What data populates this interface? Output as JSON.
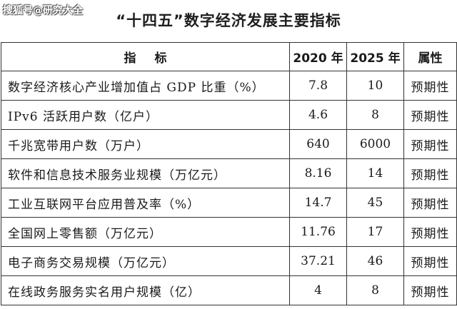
{
  "watermark": "搜狐号@研究大全",
  "title": "“十四五”数字经济发展主要指标",
  "table": {
    "headers": [
      "指标",
      "2020 年",
      "2025 年",
      "属性"
    ],
    "rows": [
      {
        "name": "数字经济核心产业增加值占 GDP 比重（%）",
        "y2020": "7.8",
        "y2025": "10",
        "attr": "预期性"
      },
      {
        "name": "IPv6 活跃用户数（亿户）",
        "y2020": "4.6",
        "y2025": "8",
        "attr": "预期性"
      },
      {
        "name": "千兆宽带用户数（万户）",
        "y2020": "640",
        "y2025": "6000",
        "attr": "预期性"
      },
      {
        "name": "软件和信息技术服务业规模（万亿元）",
        "y2020": "8.16",
        "y2025": "14",
        "attr": "预期性"
      },
      {
        "name": "工业互联网平台应用普及率（%）",
        "y2020": "14.7",
        "y2025": "45",
        "attr": "预期性"
      },
      {
        "name": "全国网上零售额（万亿元）",
        "y2020": "11.76",
        "y2025": "17",
        "attr": "预期性"
      },
      {
        "name": "电子商务交易规模（万亿元）",
        "y2020": "37.21",
        "y2025": "46",
        "attr": "预期性"
      },
      {
        "name": "在线政务服务实名用户规模（亿）",
        "y2020": "4",
        "y2025": "8",
        "attr": "预期性"
      }
    ]
  }
}
